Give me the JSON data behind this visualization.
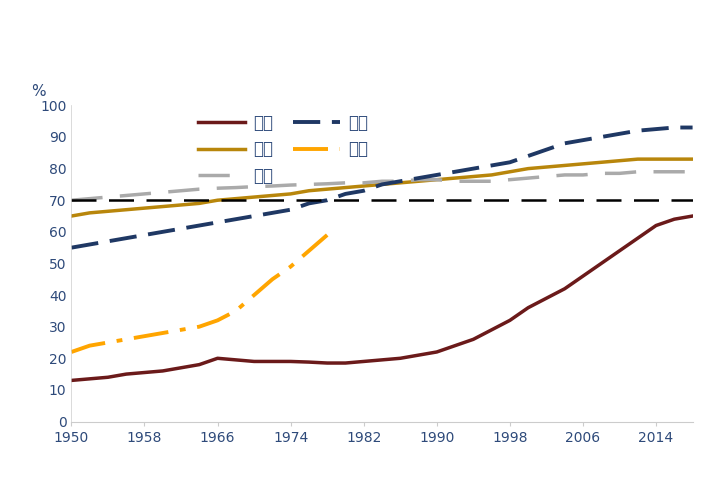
{
  "ylabel": "%",
  "xlim": [
    1950,
    2018
  ],
  "ylim": [
    0,
    100
  ],
  "xticks": [
    1950,
    1958,
    1966,
    1974,
    1982,
    1990,
    1998,
    2006,
    2014
  ],
  "yticks": [
    0,
    10,
    20,
    30,
    40,
    50,
    60,
    70,
    80,
    90,
    100
  ],
  "hline_y": 70,
  "tick_color": "#2E4A7A",
  "series": {
    "中国": {
      "color": "#6B1A1A",
      "linestyle": "solid",
      "linewidth": 2.5,
      "years": [
        1950,
        1952,
        1954,
        1956,
        1958,
        1960,
        1962,
        1964,
        1966,
        1968,
        1970,
        1972,
        1974,
        1976,
        1978,
        1980,
        1982,
        1984,
        1986,
        1988,
        1990,
        1992,
        1994,
        1996,
        1998,
        2000,
        2002,
        2004,
        2006,
        2008,
        2010,
        2012,
        2014,
        2016,
        2018
      ],
      "values": [
        13,
        13.5,
        14,
        15,
        15.5,
        16,
        17,
        18,
        20,
        19.5,
        19,
        19,
        19,
        18.8,
        18.5,
        18.5,
        19,
        19.5,
        20,
        21,
        22,
        24,
        26,
        29,
        32,
        36,
        39,
        42,
        46,
        50,
        54,
        58,
        62,
        64,
        65
      ]
    },
    "美国": {
      "color": "#B8860B",
      "linestyle": "solid",
      "linewidth": 2.5,
      "years": [
        1950,
        1952,
        1954,
        1956,
        1958,
        1960,
        1962,
        1964,
        1966,
        1968,
        1970,
        1972,
        1974,
        1976,
        1978,
        1980,
        1982,
        1984,
        1986,
        1988,
        1990,
        1992,
        1994,
        1996,
        1998,
        2000,
        2002,
        2004,
        2006,
        2008,
        2010,
        2012,
        2014,
        2016,
        2018
      ],
      "values": [
        65,
        66,
        66.5,
        67,
        67.5,
        68,
        68.5,
        69,
        70,
        70.5,
        71,
        71.5,
        72,
        73,
        73.5,
        74,
        74.5,
        75,
        75.5,
        76,
        76.5,
        77,
        77.5,
        78,
        79,
        80,
        80.5,
        81,
        81.5,
        82,
        82.5,
        83,
        83,
        83,
        83
      ]
    },
    "德国": {
      "color": "#AAAAAA",
      "linestyle": "dashed",
      "linewidth": 2.5,
      "years": [
        1950,
        1952,
        1954,
        1956,
        1958,
        1960,
        1962,
        1964,
        1966,
        1968,
        1970,
        1972,
        1974,
        1976,
        1978,
        1980,
        1982,
        1984,
        1986,
        1988,
        1990,
        1992,
        1994,
        1996,
        1998,
        2000,
        2002,
        2004,
        2006,
        2008,
        2010,
        2012,
        2014,
        2016,
        2018
      ],
      "values": [
        70,
        70.5,
        71,
        71.5,
        72,
        72.5,
        73,
        73.5,
        73.8,
        74,
        74.3,
        74.5,
        74.8,
        75,
        75.2,
        75.5,
        75.5,
        76,
        76,
        76.5,
        76.5,
        76,
        76,
        76,
        76.5,
        77,
        77.5,
        78,
        78,
        78.5,
        78.5,
        79,
        79,
        79,
        79
      ]
    },
    "日本": {
      "color": "#1F3864",
      "linestyle": "dashed",
      "linewidth": 2.8,
      "years": [
        1950,
        1952,
        1954,
        1956,
        1958,
        1960,
        1962,
        1964,
        1966,
        1968,
        1970,
        1972,
        1974,
        1976,
        1978,
        1980,
        1982,
        1984,
        1986,
        1988,
        1990,
        1992,
        1994,
        1996,
        1998,
        2000,
        2002,
        2004,
        2006,
        2008,
        2010,
        2012,
        2014,
        2016,
        2018
      ],
      "values": [
        55,
        56,
        57,
        58,
        59,
        60,
        61,
        62,
        63,
        64,
        65,
        66,
        67,
        69,
        70,
        72,
        73,
        75,
        76,
        77,
        78,
        79,
        80,
        81,
        82,
        84,
        86,
        88,
        89,
        90,
        91,
        92,
        92.5,
        93,
        93
      ]
    },
    "韩国": {
      "color": "#FFA500",
      "linestyle": "dashdot",
      "linewidth": 2.8,
      "years": [
        1950,
        1952,
        1954,
        1956,
        1958,
        1960,
        1962,
        1964,
        1966,
        1968,
        1970,
        1972,
        1974,
        1976,
        1978
      ],
      "values": [
        22,
        24,
        25,
        26,
        27,
        28,
        29,
        30,
        32,
        35,
        40,
        45,
        49,
        54,
        59
      ]
    }
  },
  "legend_labels": [
    "中国",
    "美国",
    "德国",
    "日本",
    "韩国"
  ],
  "background_color": "#FFFFFF"
}
